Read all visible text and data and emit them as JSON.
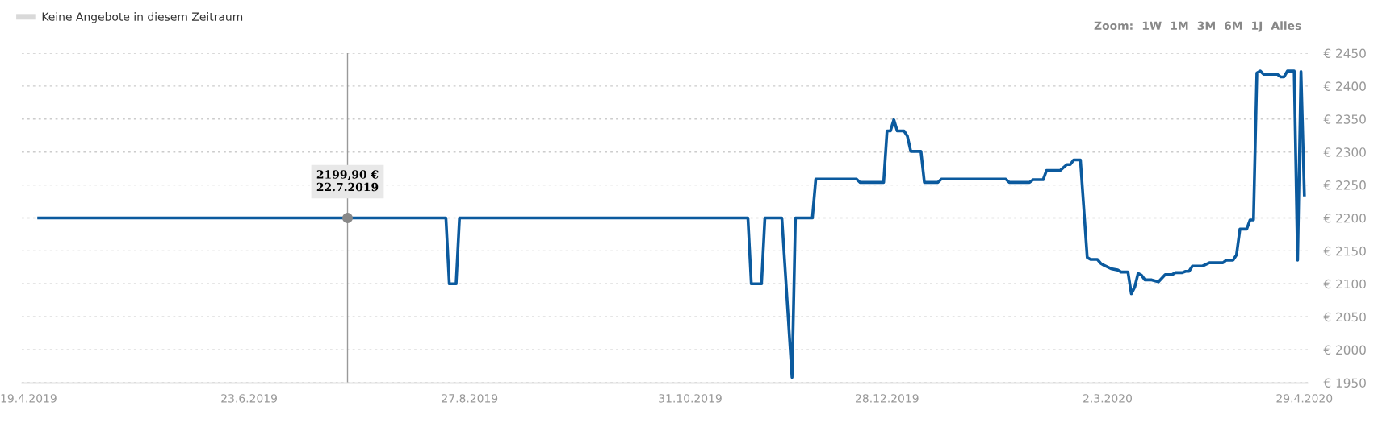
{
  "chart_data": {
    "type": "line",
    "series": [
      {
        "color": "#0b5a9e",
        "x": [
          "2019-04-22",
          "2019-08-20",
          "2019-08-21",
          "2019-08-23",
          "2019-08-24",
          "2019-11-17",
          "2019-11-18",
          "2019-11-21",
          "2019-11-22",
          "2019-11-27",
          "2019-11-30",
          "2019-12-01",
          "2019-12-06",
          "2019-12-07",
          "2019-12-19",
          "2019-12-20",
          "2019-12-27",
          "2019-12-28",
          "2019-12-29",
          "2019-12-30",
          "2019-12-31",
          "2020-01-02",
          "2020-01-03",
          "2020-01-04",
          "2020-01-07",
          "2020-01-08",
          "2020-01-12",
          "2020-01-13",
          "2020-02-01",
          "2020-02-02",
          "2020-02-08",
          "2020-02-09",
          "2020-02-12",
          "2020-02-13",
          "2020-02-17",
          "2020-02-19",
          "2020-02-20",
          "2020-02-21",
          "2020-02-23",
          "2020-02-25",
          "2020-02-26",
          "2020-02-28",
          "2020-02-29",
          "2020-03-01",
          "2020-03-03",
          "2020-03-05",
          "2020-03-06",
          "2020-03-08",
          "2020-03-09",
          "2020-03-10",
          "2020-03-11",
          "2020-03-12",
          "2020-03-13",
          "2020-03-15",
          "2020-03-17",
          "2020-03-19",
          "2020-03-21",
          "2020-03-22",
          "2020-03-24",
          "2020-03-25",
          "2020-03-26",
          "2020-03-27",
          "2020-03-30",
          "2020-04-01",
          "2020-04-05",
          "2020-04-06",
          "2020-04-08",
          "2020-04-09",
          "2020-04-10",
          "2020-04-12",
          "2020-04-13",
          "2020-04-14",
          "2020-04-15",
          "2020-04-16",
          "2020-04-17",
          "2020-04-21",
          "2020-04-22",
          "2020-04-23",
          "2020-04-24",
          "2020-04-26",
          "2020-04-27",
          "2020-04-28",
          "2020-04-29"
        ],
        "values": [
          2200,
          2200,
          2100,
          2100,
          2200,
          2200,
          2100,
          2100,
          2200,
          2200,
          1958,
          2200,
          2200,
          2259,
          2259,
          2254,
          2254,
          2332,
          2332,
          2349,
          2332,
          2332,
          2324,
          2301,
          2301,
          2254,
          2254,
          2259,
          2259,
          2254,
          2254,
          2258,
          2258,
          2272,
          2272,
          2281,
          2281,
          2288,
          2288,
          2140,
          2137,
          2137,
          2131,
          2128,
          2123,
          2121,
          2118,
          2118,
          2085,
          2095,
          2116,
          2113,
          2106,
          2106,
          2103,
          2114,
          2114,
          2117,
          2117,
          2119,
          2119,
          2127,
          2127,
          2132,
          2132,
          2136,
          2136,
          2144,
          2183,
          2183,
          2197,
          2197,
          2420,
          2423,
          2418,
          2418,
          2414,
          2414,
          2423,
          2423,
          2136,
          2422,
          2235
        ]
      },
      {
        "name": "Keine Angebote in diesem Zeitraum",
        "color": "#d9d9d9"
      },
      {
        "type": "scatter",
        "marker": "circle",
        "color": "#888888",
        "x": [
          "2019-07-22"
        ],
        "values": [
          2200
        ]
      }
    ],
    "xlim": [
      "2019-04-17",
      "2020-04-30"
    ],
    "xticks": [
      {
        "value": "2019-04-19",
        "label": "19.4.2019"
      },
      {
        "value": "2019-06-23",
        "label": "23.6.2019"
      },
      {
        "value": "2019-08-27",
        "label": "27.8.2019"
      },
      {
        "value": "2019-10-31",
        "label": "31.10.2019"
      },
      {
        "value": "2019-12-28",
        "label": "28.12.2019"
      },
      {
        "value": "2020-03-02",
        "label": "2.3.2020"
      },
      {
        "value": "2020-04-29",
        "label": "29.4.2020"
      }
    ],
    "ylim": [
      1950,
      2450
    ],
    "yticks": [
      {
        "value": 1950,
        "label": "€ 1950"
      },
      {
        "value": 2000,
        "label": "€ 2000"
      },
      {
        "value": 2050,
        "label": "€ 2050"
      },
      {
        "value": 2100,
        "label": "€ 2100"
      },
      {
        "value": 2150,
        "label": "€ 2150"
      },
      {
        "value": 2200,
        "label": "€ 2200"
      },
      {
        "value": 2250,
        "label": "€ 2250"
      },
      {
        "value": 2300,
        "label": "€ 2300"
      },
      {
        "value": 2350,
        "label": "€ 2350"
      },
      {
        "value": 2400,
        "label": "€ 2400"
      },
      {
        "value": 2450,
        "label": "€ 2450"
      }
    ],
    "grid": "y",
    "legend": "top left",
    "marker": "none",
    "line_style": "solid",
    "ref_lines": [
      {
        "axis": "x",
        "value": "2019-07-22",
        "label": null,
        "color": "#999999"
      }
    ],
    "annotations": [
      {
        "text": "2199,90 €\n22.7.2019",
        "x": "2019-07-22",
        "y": 2200
      },
      "Zoom:",
      "1W",
      "1M",
      "3M",
      "6M",
      "1J",
      "Alles"
    ]
  }
}
